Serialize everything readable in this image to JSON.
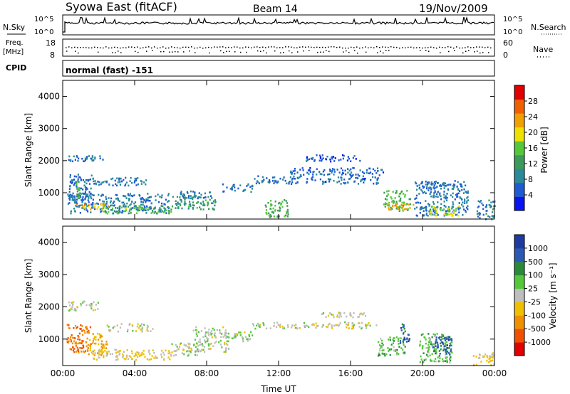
{
  "header": {
    "station": "Syowa East (fitACF)",
    "beam": "Beam 14",
    "date": "19/Nov/2009"
  },
  "top_strip": {
    "nsky_label": "N.Sky",
    "nsearch_label": "N.Search",
    "freq_label": "Freq.",
    "freq_unit": "[MHz]",
    "nave_label": "Nave",
    "cpid_label": "CPID",
    "cpid_value": "normal (fast) -151",
    "freq_ticks": [
      "18",
      "8"
    ],
    "nave_ticks": [
      "60",
      "0"
    ],
    "nsky_ticks": [
      "10^5",
      "10^0"
    ],
    "nsearch_ticks": [
      "10^5",
      "10^0"
    ]
  },
  "colors": {
    "power_scale": [
      "#0a14f0",
      "#1e5ad2",
      "#2a8a9a",
      "#3c9a5a",
      "#55c83a",
      "#f0e000",
      "#f0a000",
      "#f06000",
      "#e00000"
    ],
    "velocity_scale": [
      "#e00000",
      "#f05000",
      "#f09000",
      "#f0c000",
      "#bebebe",
      "#55c83a",
      "#2a8a3a",
      "#2a5ab4",
      "#1e3ca0"
    ]
  },
  "chart_data": [
    {
      "type": "heatmap",
      "title": "Power",
      "ylabel": "Slant Range [km]",
      "xlabel": "",
      "ylim": [
        180,
        4500
      ],
      "yticks": [
        "1000",
        "2000",
        "3000",
        "4000"
      ],
      "xticks": [
        "00:00",
        "04:00",
        "08:00",
        "12:00",
        "16:00",
        "20:00",
        "00:00"
      ],
      "colorbar_label": "Power [dB]",
      "colorbar_ticks": [
        "28",
        "24",
        "20",
        "16",
        "12",
        "8",
        "4"
      ],
      "colorbar_range": [
        0,
        30
      ],
      "patches": [
        {
          "t0": 0.2,
          "t1": 5.9,
          "r0": 380,
          "r1": 1000,
          "value": 7
        },
        {
          "t0": 0.3,
          "t1": 2.2,
          "r0": 2000,
          "r1": 2200,
          "value": 6
        },
        {
          "t0": 0.3,
          "t1": 1.6,
          "r0": 780,
          "r1": 1600,
          "value": 6
        },
        {
          "t0": 1.6,
          "t1": 4.6,
          "r0": 1250,
          "r1": 1500,
          "value": 7
        },
        {
          "t0": 0.7,
          "t1": 2.5,
          "r0": 480,
          "r1": 700,
          "value": 21
        },
        {
          "t0": 0.7,
          "t1": 1.0,
          "r0": 800,
          "r1": 1400,
          "value": 13
        },
        {
          "t0": 2.2,
          "t1": 6.0,
          "r0": 380,
          "r1": 620,
          "value": 14
        },
        {
          "t0": 6.0,
          "t1": 8.5,
          "r0": 500,
          "r1": 900,
          "value": 11
        },
        {
          "t0": 6.4,
          "t1": 8.2,
          "r0": 850,
          "r1": 1100,
          "value": 7
        },
        {
          "t0": 8.8,
          "t1": 10.6,
          "r0": 1050,
          "r1": 1300,
          "value": 7
        },
        {
          "t0": 10.5,
          "t1": 17.5,
          "r0": 1300,
          "r1": 1550,
          "value": 6
        },
        {
          "t0": 12.5,
          "t1": 17.8,
          "r0": 1550,
          "r1": 1800,
          "value": 6
        },
        {
          "t0": 13.5,
          "t1": 16.5,
          "r0": 2000,
          "r1": 2200,
          "value": 5
        },
        {
          "t0": 17.8,
          "t1": 19.3,
          "r0": 450,
          "r1": 1100,
          "value": 14
        },
        {
          "t0": 18.0,
          "t1": 19.5,
          "r0": 500,
          "r1": 700,
          "value": 22
        },
        {
          "t0": 19.5,
          "t1": 22.5,
          "r0": 300,
          "r1": 1400,
          "value": 7
        },
        {
          "t0": 20.3,
          "t1": 22.0,
          "r0": 300,
          "r1": 600,
          "value": 17
        },
        {
          "t0": 11.2,
          "t1": 12.5,
          "r0": 250,
          "r1": 800,
          "value": 13
        },
        {
          "t0": 23.0,
          "t1": 24.0,
          "r0": 200,
          "r1": 800,
          "value": 8
        }
      ]
    },
    {
      "type": "heatmap",
      "title": "Velocity",
      "ylabel": "Slant Range [km]",
      "xlabel": "Time UT",
      "ylim": [
        180,
        4500
      ],
      "yticks": [
        "1000",
        "2000",
        "3000",
        "4000"
      ],
      "xticks": [
        "00:00",
        "04:00",
        "08:00",
        "12:00",
        "16:00",
        "20:00",
        "00:00"
      ],
      "colorbar_label": "Velocity [m s⁻¹]",
      "colorbar_ticks": [
        "1000",
        "500",
        "100",
        "25",
        "-25",
        "-100",
        "-500",
        "-1000"
      ],
      "colorbar_range": [
        -1250,
        1250
      ],
      "patches": [
        {
          "t0": 0.2,
          "t1": 1.6,
          "r0": 600,
          "r1": 1500,
          "value": -700
        },
        {
          "t0": 0.3,
          "t1": 2.0,
          "r0": 1900,
          "r1": 2200,
          "value": 0
        },
        {
          "t0": 1.4,
          "t1": 2.5,
          "r0": 500,
          "r1": 1200,
          "value": -450
        },
        {
          "t0": 1.6,
          "t1": 6.0,
          "r0": 380,
          "r1": 700,
          "value": -200
        },
        {
          "t0": 2.4,
          "t1": 5.0,
          "r0": 1250,
          "r1": 1500,
          "value": 0
        },
        {
          "t0": 6.0,
          "t1": 7.5,
          "r0": 500,
          "r1": 900,
          "value": 0
        },
        {
          "t0": 7.2,
          "t1": 9.2,
          "r0": 600,
          "r1": 1400,
          "value": 60
        },
        {
          "t0": 9.0,
          "t1": 10.5,
          "r0": 950,
          "r1": 1250,
          "value": 60
        },
        {
          "t0": 10.5,
          "t1": 17.5,
          "r0": 1350,
          "r1": 1550,
          "value": 0
        },
        {
          "t0": 14.0,
          "t1": 17.0,
          "r0": 1700,
          "r1": 1850,
          "value": 0
        },
        {
          "t0": 17.5,
          "t1": 19.0,
          "r0": 500,
          "r1": 1100,
          "value": 300
        },
        {
          "t0": 18.7,
          "t1": 19.3,
          "r0": 900,
          "r1": 1500,
          "value": 800
        },
        {
          "t0": 19.8,
          "t1": 21.6,
          "r0": 300,
          "r1": 1200,
          "value": 300
        },
        {
          "t0": 20.5,
          "t1": 21.6,
          "r0": 550,
          "r1": 1100,
          "value": 800
        },
        {
          "t0": 22.8,
          "t1": 24.0,
          "r0": 200,
          "r1": 600,
          "value": -300
        }
      ]
    }
  ]
}
